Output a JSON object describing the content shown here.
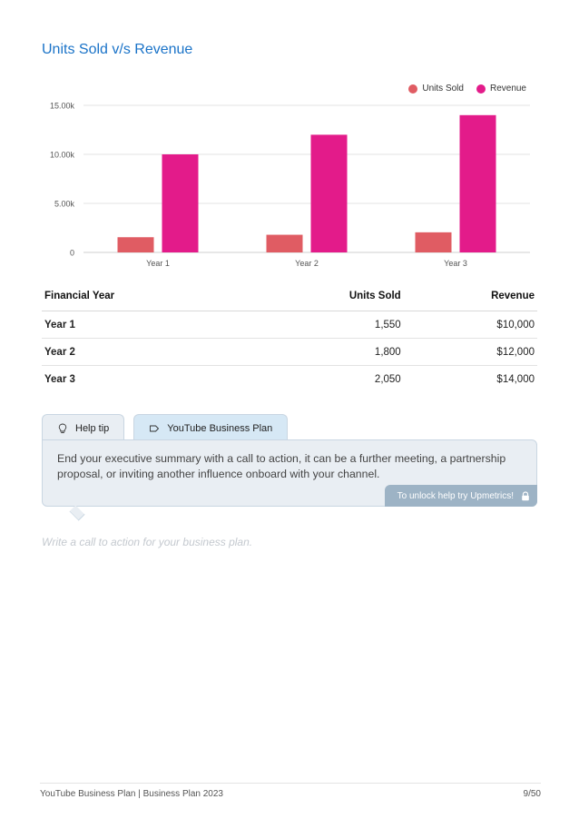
{
  "page": {
    "title": "Units Sold v/s Revenue",
    "cta_placeholder": "Write a call to action for your business plan."
  },
  "chart_data": {
    "type": "bar",
    "title": "",
    "categories": [
      "Year 1",
      "Year 2",
      "Year 3"
    ],
    "series": [
      {
        "name": "Units Sold",
        "color": "#e05c63",
        "values": [
          1550,
          1800,
          2050
        ]
      },
      {
        "name": "Revenue",
        "color": "#e31b8a",
        "values": [
          10000,
          12000,
          14000
        ]
      }
    ],
    "ylim": [
      0,
      15000
    ],
    "yticks": [
      {
        "value": 0,
        "label": "0"
      },
      {
        "value": 5000,
        "label": "5.00k"
      },
      {
        "value": 10000,
        "label": "10.00k"
      },
      {
        "value": 15000,
        "label": "15.00k"
      }
    ],
    "grid": true,
    "legend_position": "top-right",
    "xlabel": "",
    "ylabel": ""
  },
  "table": {
    "headers": [
      "Financial Year",
      "Units Sold",
      "Revenue"
    ],
    "rows": [
      [
        "Year 1",
        "1,550",
        "$10,000"
      ],
      [
        "Year 2",
        "1,800",
        "$12,000"
      ],
      [
        "Year 3",
        "2,050",
        "$14,000"
      ]
    ]
  },
  "help": {
    "tab_help": "Help tip",
    "tab_plan": "YouTube Business Plan",
    "text": "End your executive summary with a call to action, it can be a further meeting, a partnership proposal, or inviting another influence onboard with your channel.",
    "unlock": "To unlock help try Upmetrics!",
    "icons": {
      "help": "lightbulb-icon",
      "plan": "tag-icon",
      "unlock": "lock-icon"
    }
  },
  "footer": {
    "left": "YouTube Business Plan | Business Plan 2023",
    "right": "9/50"
  }
}
